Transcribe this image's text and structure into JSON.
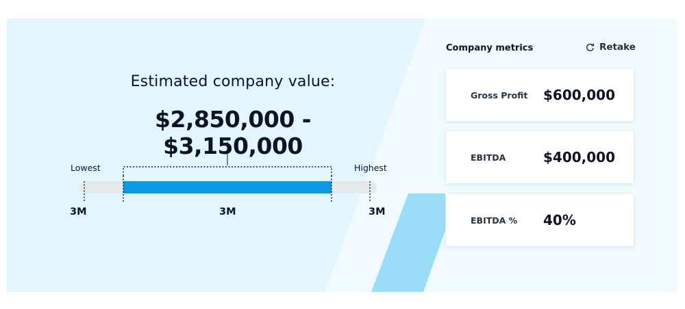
{
  "valuation": {
    "label": "Estimated company value:",
    "range": "$2,850,000 - $3,150,000",
    "scale": {
      "lowest_label": "Lowest",
      "highest_label": "Highest",
      "left_value": "3M",
      "middle_value": "3M",
      "right_value": "3M"
    }
  },
  "metrics": {
    "title": "Company metrics",
    "retake_label": "Retake",
    "retake_icon": "refresh-icon",
    "items": [
      {
        "label": "Gross Profit",
        "value": "$600,000"
      },
      {
        "label": "EBITDA",
        "value": "$400,000"
      },
      {
        "label": "EBITDA %",
        "value": "40%"
      }
    ]
  },
  "colors": {
    "panel_light_blue": "#e4f6fd",
    "panel_pale": "#f1fafe",
    "accent_stripe": "#9bddf8",
    "range_bar": "#0a9ae3",
    "track": "#e6e9ec",
    "text": "#0b1424"
  }
}
